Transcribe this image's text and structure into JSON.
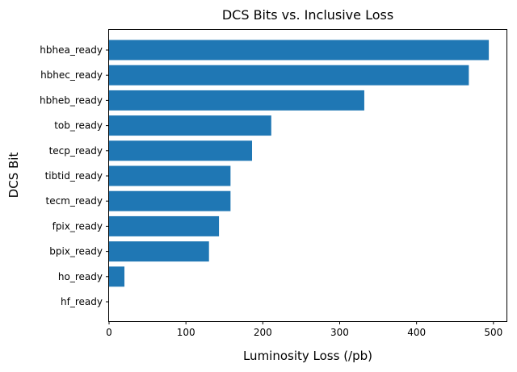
{
  "chart_data": {
    "type": "bar",
    "orientation": "horizontal",
    "title": "DCS Bits vs. Inclusive Loss",
    "xlabel": "Luminosity Loss (/pb)",
    "ylabel": "DCS Bit",
    "categories": [
      "hbhea_ready",
      "hbhec_ready",
      "hbheb_ready",
      "tob_ready",
      "tecp_ready",
      "tibtid_ready",
      "tecm_ready",
      "fpix_ready",
      "bpix_ready",
      "ho_ready",
      "hf_ready"
    ],
    "values": [
      494,
      468,
      332,
      211,
      186,
      158,
      158,
      143,
      130,
      20,
      0
    ],
    "xlim": [
      0,
      517
    ],
    "xticks": [
      0,
      100,
      200,
      300,
      400,
      500
    ],
    "grid": false,
    "bar_color": "#1f77b4"
  }
}
